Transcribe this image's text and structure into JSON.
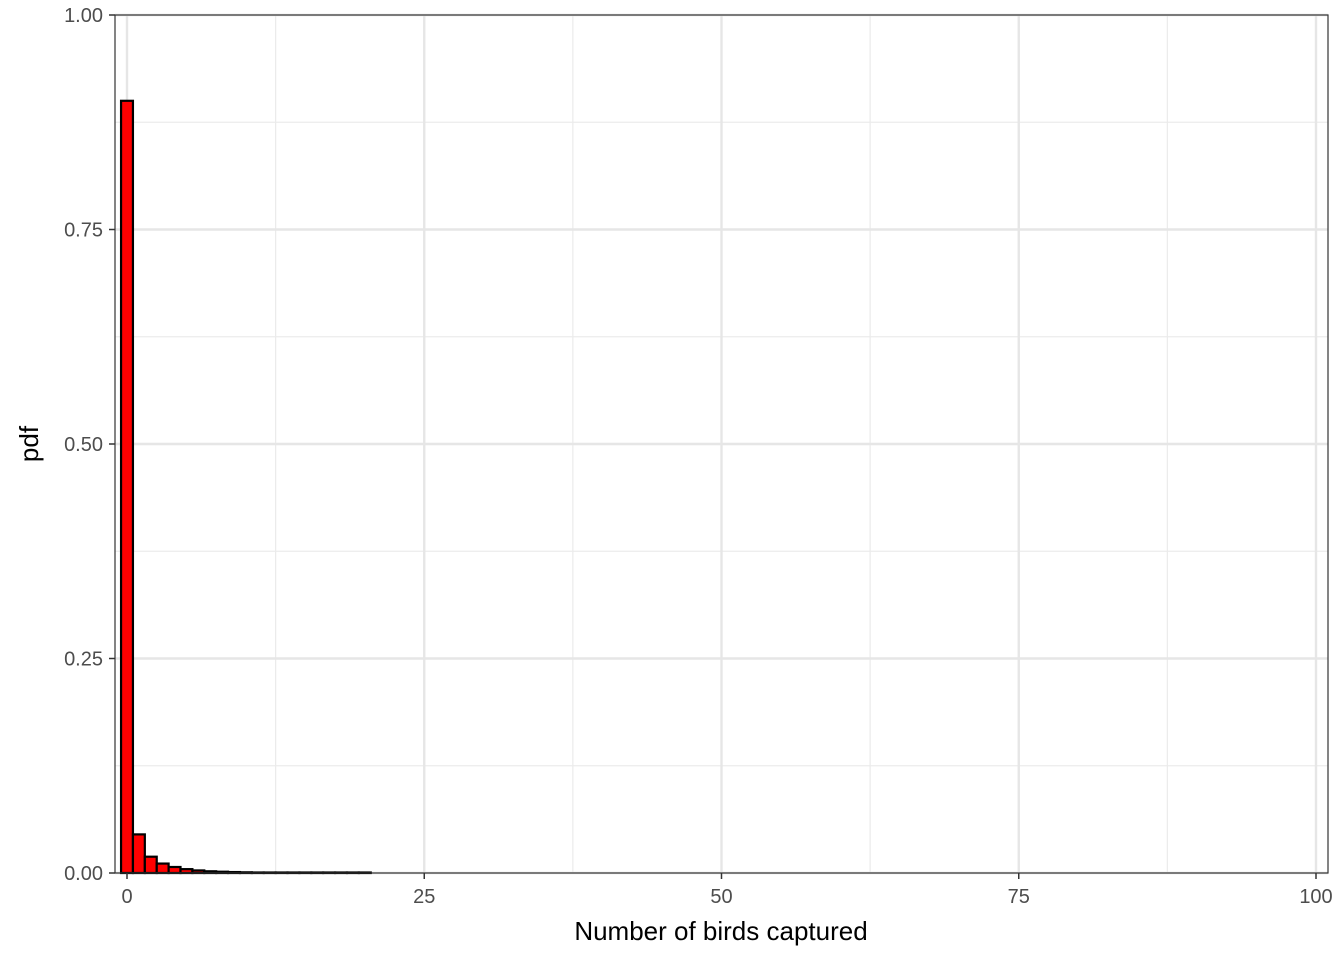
{
  "chart_data": {
    "type": "bar",
    "title": "",
    "xlabel": "Number of birds captured",
    "ylabel": "pdf",
    "xlim": [
      -1,
      100
    ],
    "ylim": [
      0,
      1
    ],
    "x_ticks": [
      0,
      25,
      50,
      75,
      100
    ],
    "y_ticks": [
      0,
      0.25,
      0.5,
      0.75,
      1
    ],
    "x_tick_labels": [
      "0",
      "25",
      "50",
      "75",
      "100"
    ],
    "y_tick_labels": [
      "0.00",
      "0.25",
      "0.50",
      "0.75",
      "1.00"
    ],
    "grid": true,
    "bar_color": "#ff0000",
    "bar_outline": "#000000",
    "series": [
      {
        "x": [
          0,
          1,
          2,
          3,
          4,
          5,
          6,
          7,
          8,
          9,
          10,
          11,
          12,
          13,
          14,
          15,
          16,
          17,
          18,
          19,
          20
        ],
        "values": [
          0.9,
          0.045,
          0.019,
          0.011,
          0.007,
          0.0045,
          0.003,
          0.002,
          0.0015,
          0.0011,
          0.0008,
          0.0006,
          0.0005,
          0.0004,
          0.0003,
          0.00025,
          0.0002,
          0.00016,
          0.00013,
          0.0001,
          8e-05
        ]
      }
    ]
  }
}
